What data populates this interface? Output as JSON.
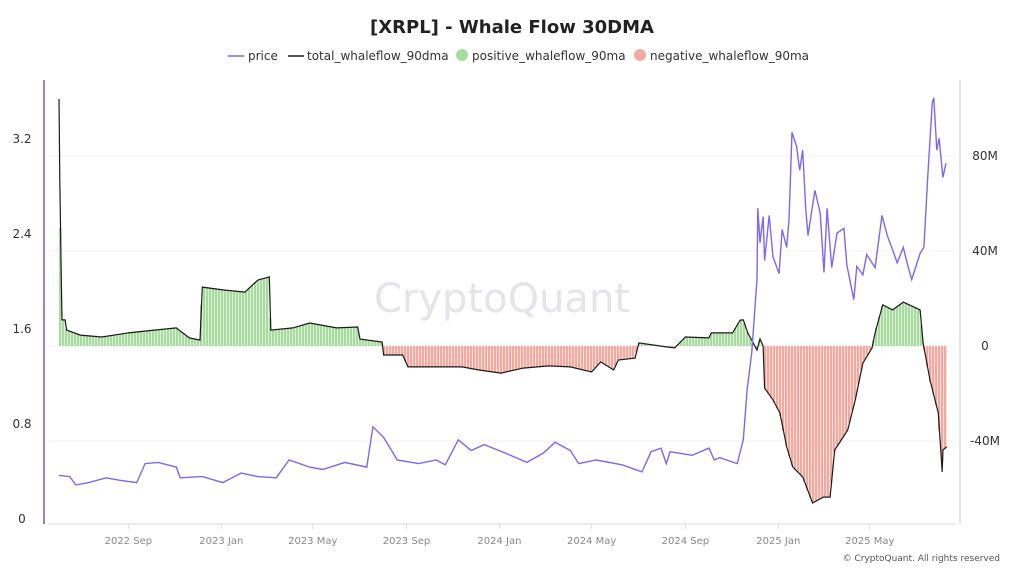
{
  "chart_data": {
    "type": "line",
    "title": "[XRPL] - Whale Flow 30DMA",
    "watermark": "CryptoQuant",
    "footer": "© CryptoQuant. All rights reserved",
    "legend_position": "top",
    "grid": true,
    "x_ticks": [
      "2022 Sep",
      "2023 Jan",
      "2023 May",
      "2023 Sep",
      "2024 Jan",
      "2024 May",
      "2024 Sep",
      "2025 Jan",
      "2025 May"
    ],
    "x_tick_dates": [
      "2022-09-01",
      "2023-01-01",
      "2023-05-01",
      "2023-09-01",
      "2024-01-01",
      "2024-05-01",
      "2024-09-01",
      "2025-01-01",
      "2025-05-01"
    ],
    "y_left": {
      "ticks": [
        "0",
        "0.8",
        "1.6",
        "2.4",
        "3.2"
      ],
      "tick_values": [
        0,
        0.8,
        1.6,
        2.4,
        3.2
      ]
    },
    "y_right": {
      "ticks": [
        "-40M",
        "0",
        "40M",
        "80M"
      ],
      "tick_values": [
        -40,
        0,
        40,
        80
      ],
      "unit": "M"
    },
    "colors": {
      "price": "#7b68ee",
      "total": "#1a1a1a",
      "positive": "#a8dba0",
      "negative": "#f2aaa0",
      "left_axis": "#8f7ff0"
    },
    "series": [
      {
        "name": "price",
        "axis": "left",
        "points": [
          [
            "2022-06-02",
            0.51
          ],
          [
            "2022-06-16",
            0.5
          ],
          [
            "2022-06-24",
            0.43
          ],
          [
            "2022-07-11",
            0.45
          ],
          [
            "2022-08-03",
            0.49
          ],
          [
            "2022-08-20",
            0.47
          ],
          [
            "2022-09-12",
            0.45
          ],
          [
            "2022-09-23",
            0.61
          ],
          [
            "2022-10-10",
            0.62
          ],
          [
            "2022-11-03",
            0.58
          ],
          [
            "2022-11-08",
            0.49
          ],
          [
            "2022-12-07",
            0.5
          ],
          [
            "2023-01-03",
            0.45
          ],
          [
            "2023-01-27",
            0.53
          ],
          [
            "2023-02-18",
            0.5
          ],
          [
            "2023-03-14",
            0.49
          ],
          [
            "2023-03-31",
            0.64
          ],
          [
            "2023-04-27",
            0.58
          ],
          [
            "2023-05-14",
            0.56
          ],
          [
            "2023-06-12",
            0.62
          ],
          [
            "2023-07-11",
            0.58
          ],
          [
            "2023-07-19",
            0.92
          ],
          [
            "2023-08-02",
            0.83
          ],
          [
            "2023-08-20",
            0.64
          ],
          [
            "2023-09-17",
            0.61
          ],
          [
            "2023-10-10",
            0.64
          ],
          [
            "2023-10-22",
            0.6
          ],
          [
            "2023-11-08",
            0.81
          ],
          [
            "2023-11-25",
            0.72
          ],
          [
            "2023-12-12",
            0.77
          ],
          [
            "2024-01-08",
            0.7
          ],
          [
            "2024-02-06",
            0.62
          ],
          [
            "2024-02-28",
            0.7
          ],
          [
            "2024-03-14",
            0.79
          ],
          [
            "2024-04-03",
            0.72
          ],
          [
            "2024-04-14",
            0.61
          ],
          [
            "2024-05-07",
            0.64
          ],
          [
            "2024-06-10",
            0.6
          ],
          [
            "2024-07-06",
            0.54
          ],
          [
            "2024-07-18",
            0.71
          ],
          [
            "2024-07-31",
            0.74
          ],
          [
            "2024-08-07",
            0.61
          ],
          [
            "2024-08-12",
            0.71
          ],
          [
            "2024-09-10",
            0.68
          ],
          [
            "2024-10-02",
            0.74
          ],
          [
            "2024-10-09",
            0.64
          ],
          [
            "2024-10-16",
            0.66
          ],
          [
            "2024-11-08",
            0.61
          ],
          [
            "2024-11-16",
            0.81
          ],
          [
            "2024-11-21",
            1.23
          ],
          [
            "2024-11-27",
            1.54
          ],
          [
            "2024-12-04",
            2.16
          ],
          [
            "2024-12-05",
            2.76
          ],
          [
            "2024-12-08",
            2.47
          ],
          [
            "2024-12-12",
            2.69
          ],
          [
            "2024-12-14",
            2.32
          ],
          [
            "2024-12-20",
            2.7
          ],
          [
            "2024-12-25",
            2.35
          ],
          [
            "2025-01-02",
            2.21
          ],
          [
            "2025-01-06",
            2.58
          ],
          [
            "2025-01-12",
            2.43
          ],
          [
            "2025-01-15",
            2.66
          ],
          [
            "2025-01-19",
            3.4
          ],
          [
            "2025-01-25",
            3.28
          ],
          [
            "2025-01-29",
            3.08
          ],
          [
            "2025-02-02",
            3.25
          ],
          [
            "2025-02-06",
            2.75
          ],
          [
            "2025-02-09",
            2.53
          ],
          [
            "2025-02-18",
            2.91
          ],
          [
            "2025-02-25",
            2.72
          ],
          [
            "2025-03-02",
            2.22
          ],
          [
            "2025-03-06",
            2.76
          ],
          [
            "2025-03-12",
            2.26
          ],
          [
            "2025-03-19",
            2.55
          ],
          [
            "2025-03-28",
            2.59
          ],
          [
            "2025-04-01",
            2.28
          ],
          [
            "2025-04-10",
            1.99
          ],
          [
            "2025-04-14",
            2.27
          ],
          [
            "2025-04-22",
            2.2
          ],
          [
            "2025-04-27",
            2.37
          ],
          [
            "2025-05-08",
            2.26
          ],
          [
            "2025-05-17",
            2.7
          ],
          [
            "2025-05-24",
            2.53
          ],
          [
            "2025-05-31",
            2.41
          ],
          [
            "2025-06-06",
            2.3
          ],
          [
            "2025-06-14",
            2.43
          ],
          [
            "2025-06-19",
            2.3
          ],
          [
            "2025-06-25",
            2.16
          ],
          [
            "2025-07-06",
            2.38
          ],
          [
            "2025-07-11",
            2.43
          ],
          [
            "2025-07-16",
            3.02
          ],
          [
            "2025-07-22",
            3.65
          ],
          [
            "2025-07-24",
            3.69
          ],
          [
            "2025-07-28",
            3.25
          ],
          [
            "2025-07-31",
            3.35
          ],
          [
            "2025-08-05",
            3.02
          ],
          [
            "2025-08-09",
            3.14
          ]
        ]
      },
      {
        "name": "total_whaleflow_90dma",
        "axis": "right",
        "points": [
          [
            "2022-06-02",
            104
          ],
          [
            "2022-06-03",
            70
          ],
          [
            "2022-06-05",
            28
          ],
          [
            "2022-06-06",
            11
          ],
          [
            "2022-06-10",
            11
          ],
          [
            "2022-06-12",
            6.7
          ],
          [
            "2022-06-30",
            4.6
          ],
          [
            "2022-07-28",
            3.8
          ],
          [
            "2022-09-01",
            5.5
          ],
          [
            "2022-10-05",
            6.7
          ],
          [
            "2022-11-03",
            7.6
          ],
          [
            "2022-11-20",
            3.4
          ],
          [
            "2022-12-04",
            2.5
          ],
          [
            "2022-12-07",
            24.8
          ],
          [
            "2023-01-03",
            23.6
          ],
          [
            "2023-02-01",
            22.7
          ],
          [
            "2023-02-18",
            27.8
          ],
          [
            "2023-03-05",
            29.1
          ],
          [
            "2023-03-07",
            6.7
          ],
          [
            "2023-04-05",
            7.6
          ],
          [
            "2023-04-27",
            9.7
          ],
          [
            "2023-06-01",
            7.6
          ],
          [
            "2023-06-29",
            8.0
          ],
          [
            "2023-07-02",
            2.9
          ],
          [
            "2023-07-31",
            1.7
          ],
          [
            "2023-08-02",
            -3.8
          ],
          [
            "2023-08-27",
            -3.8
          ],
          [
            "2023-09-03",
            -8.8
          ],
          [
            "2023-10-15",
            -8.8
          ],
          [
            "2023-11-13",
            -8.8
          ],
          [
            "2023-12-05",
            -10.1
          ],
          [
            "2024-01-03",
            -11.4
          ],
          [
            "2024-02-01",
            -9.3
          ],
          [
            "2024-03-06",
            -8.4
          ],
          [
            "2024-04-03",
            -8.8
          ],
          [
            "2024-05-01",
            -10.9
          ],
          [
            "2024-05-13",
            -6.7
          ],
          [
            "2024-05-30",
            -10.1
          ],
          [
            "2024-06-05",
            -5.9
          ],
          [
            "2024-06-27",
            -5.1
          ],
          [
            "2024-07-02",
            1.3
          ],
          [
            "2024-08-07",
            -0.4
          ],
          [
            "2024-08-18",
            -0.8
          ],
          [
            "2024-09-01",
            3.8
          ],
          [
            "2024-10-02",
            3.4
          ],
          [
            "2024-10-05",
            5.5
          ],
          [
            "2024-10-16",
            5.5
          ],
          [
            "2024-11-02",
            5.5
          ],
          [
            "2024-11-12",
            10.9
          ],
          [
            "2024-11-16",
            11
          ],
          [
            "2024-11-22",
            5.5
          ],
          [
            "2024-11-29",
            1.3
          ],
          [
            "2024-12-04",
            -1.7
          ],
          [
            "2024-12-08",
            3
          ],
          [
            "2024-12-12",
            0
          ],
          [
            "2024-12-14",
            -17.7
          ],
          [
            "2024-12-25",
            -22.7
          ],
          [
            "2025-01-03",
            -28.2
          ],
          [
            "2025-01-12",
            -42.5
          ],
          [
            "2025-01-20",
            -50.9
          ],
          [
            "2025-02-02",
            -55.1
          ],
          [
            "2025-02-15",
            -66.1
          ],
          [
            "2025-03-01",
            -63.6
          ],
          [
            "2025-03-10",
            -63.6
          ],
          [
            "2025-03-16",
            -43.8
          ],
          [
            "2025-04-02",
            -35.4
          ],
          [
            "2025-04-12",
            -22.7
          ],
          [
            "2025-04-22",
            -7.2
          ],
          [
            "2025-05-04",
            -0.8
          ],
          [
            "2025-05-08",
            5.5
          ],
          [
            "2025-05-18",
            17.3
          ],
          [
            "2025-05-31",
            15.2
          ],
          [
            "2025-06-14",
            18.5
          ],
          [
            "2025-07-06",
            15.2
          ],
          [
            "2025-07-10",
            1.3
          ],
          [
            "2025-07-19",
            -14.3
          ],
          [
            "2025-07-30",
            -28.2
          ],
          [
            "2025-08-04",
            -53
          ],
          [
            "2025-08-05",
            -43.8
          ],
          [
            "2025-08-10",
            -42.5
          ]
        ]
      },
      {
        "name": "positive_whaleflow_90ma",
        "axis": "right"
      },
      {
        "name": "negative_whaleflow_90ma",
        "axis": "right"
      }
    ],
    "legend": [
      "price",
      "total_whaleflow_90dma",
      "positive_whaleflow_90ma",
      "negative_whaleflow_90ma"
    ]
  }
}
